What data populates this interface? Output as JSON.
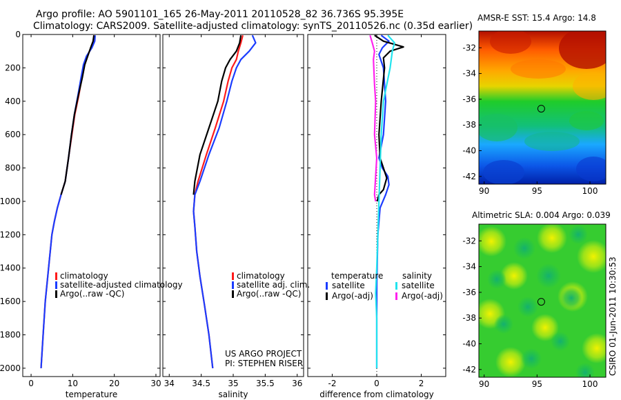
{
  "header": {
    "line1": "Argo profile: AO 5901101_165 26-May-2011 20110528_82 36.736S 95.395E",
    "line2": "Climatology: CARS2009. Satellite-adjusted climatology: synTS_20110526.nc (0.35d earlier)"
  },
  "colors": {
    "climatology": "#ff1a1a",
    "satellite": "#1a3cff",
    "argo": "#000000",
    "salinity_satellite": "#22e4ee",
    "salinity_argo": "#ff22ee"
  },
  "chart_data": [
    {
      "id": "temperature",
      "type": "line",
      "xlabel": "temperature",
      "ylabel": "",
      "xlim": [
        -2,
        31
      ],
      "ylim": [
        2050,
        0
      ],
      "xticks": [
        "0",
        "10",
        "20",
        "30"
      ],
      "xtick_values": [
        0,
        10,
        20,
        30
      ],
      "yticks": [
        "0",
        "200",
        "400",
        "600",
        "800",
        "1000",
        "1200",
        "1400",
        "1600",
        "1800",
        "2000"
      ],
      "ytick_values": [
        0,
        200,
        400,
        600,
        800,
        1000,
        1200,
        1400,
        1600,
        1800,
        2000
      ],
      "legend": [
        "climatology",
        "satellite-adjusted climatology",
        "Argo(..raw -QC)"
      ],
      "series": [
        {
          "name": "climatology",
          "color": "#ff1a1a",
          "x": [
            15.2,
            15.0,
            14.5,
            13.4,
            12.8,
            12.2,
            11.5,
            10.5,
            9.8,
            9.0,
            8.2,
            7.2,
            6.3,
            5.6,
            5.0,
            4.6,
            4.0,
            3.4,
            2.9,
            2.4
          ],
          "y": [
            5,
            40,
            80,
            130,
            180,
            260,
            360,
            480,
            600,
            740,
            880,
            960,
            1040,
            1120,
            1200,
            1300,
            1450,
            1600,
            1800,
            2000
          ]
        },
        {
          "name": "satellite-adjusted climatology",
          "color": "#1a3cff",
          "x": [
            15.4,
            15.3,
            14.6,
            13.3,
            12.6,
            12.0,
            11.3,
            10.4,
            9.7,
            9.0,
            8.2,
            7.2,
            6.3,
            5.6,
            5.0,
            4.6,
            4.0,
            3.4,
            2.9,
            2.4
          ],
          "y": [
            5,
            40,
            80,
            130,
            180,
            260,
            360,
            480,
            600,
            740,
            880,
            960,
            1040,
            1120,
            1200,
            1300,
            1450,
            1600,
            1800,
            2000
          ]
        },
        {
          "name": "Argo(..raw -QC)",
          "color": "#000000",
          "x": [
            15.1,
            14.9,
            14.3,
            13.6,
            12.9,
            12.3,
            11.4,
            10.4,
            9.7,
            9.0,
            8.2,
            7.2
          ],
          "y": [
            5,
            40,
            80,
            130,
            180,
            260,
            360,
            480,
            600,
            740,
            880,
            960
          ]
        }
      ]
    },
    {
      "id": "salinity",
      "type": "line",
      "xlabel": "salinity",
      "xlim": [
        33.9,
        36.1
      ],
      "ylim": [
        2050,
        0
      ],
      "xticks": [
        "34",
        "34.5",
        "35",
        "35.5",
        "36"
      ],
      "xtick_values": [
        34,
        34.5,
        35,
        35.5,
        36
      ],
      "legend": [
        "climatology",
        "satellite adj. clim.",
        "Argo(..raw -QC)"
      ],
      "annotations": [
        "US ARGO PROJECT",
        "PI: STEPHEN RISER"
      ],
      "series": [
        {
          "name": "climatology",
          "color": "#ff1a1a",
          "x": [
            35.15,
            35.12,
            35.08,
            35.05,
            34.98,
            34.92,
            34.85,
            34.72,
            34.58,
            34.45,
            34.4,
            34.38,
            34.4,
            34.43,
            34.48,
            34.55,
            34.62,
            34.68
          ],
          "y": [
            5,
            50,
            100,
            150,
            200,
            280,
            400,
            560,
            720,
            880,
            960,
            1060,
            1150,
            1300,
            1450,
            1620,
            1800,
            2000
          ]
        },
        {
          "name": "satellite adj. clim.",
          "color": "#1a3cff",
          "x": [
            35.3,
            35.35,
            35.25,
            35.12,
            35.05,
            34.98,
            34.9,
            34.78,
            34.62,
            34.48,
            34.4,
            34.38,
            34.4,
            34.43,
            34.48,
            34.55,
            34.62,
            34.68
          ],
          "y": [
            5,
            50,
            100,
            150,
            200,
            280,
            400,
            560,
            720,
            880,
            960,
            1060,
            1150,
            1300,
            1450,
            1620,
            1800,
            2000
          ]
        },
        {
          "name": "Argo(..raw -QC)",
          "color": "#000000",
          "x": [
            35.12,
            35.1,
            35.05,
            34.95,
            34.88,
            34.82,
            34.76,
            34.62,
            34.48,
            34.4,
            34.38
          ],
          "y": [
            5,
            50,
            100,
            150,
            200,
            280,
            400,
            560,
            720,
            880,
            960
          ]
        }
      ]
    },
    {
      "id": "difference",
      "type": "line",
      "xlabel": "difference from climatology",
      "xlim": [
        -3.1,
        3.1
      ],
      "ylim": [
        2050,
        0
      ],
      "xticks": [
        "-2",
        "0",
        "2"
      ],
      "xtick_values": [
        -2,
        0,
        2
      ],
      "legend_headers": [
        "temperature",
        "salinity"
      ],
      "legend": [
        "satellite",
        "Argo(-adj)",
        "satellite",
        "Argo(-adj)"
      ],
      "series": [
        {
          "name": "temperature satellite",
          "color": "#1a3cff",
          "x": [
            0.2,
            0.55,
            0.25,
            0.1,
            0.3,
            0.4,
            0.3,
            0.1,
            0.25,
            0.5,
            0.55,
            0.4,
            0.15,
            0.05,
            0.0,
            0.0
          ],
          "y": [
            5,
            40,
            80,
            120,
            200,
            400,
            600,
            740,
            800,
            850,
            900,
            960,
            1040,
            1200,
            1500,
            2000
          ]
        },
        {
          "name": "temperature Argo(-adj)",
          "color": "#000000",
          "x": [
            -0.1,
            0.3,
            1.2,
            0.6,
            0.3,
            0.35,
            0.2,
            0.1,
            0.15,
            0.3,
            0.45,
            0.3,
            0.1,
            0.02
          ],
          "y": [
            5,
            40,
            75,
            100,
            140,
            200,
            400,
            600,
            740,
            800,
            860,
            930,
            960,
            1000
          ]
        },
        {
          "name": "salinity satellite",
          "color": "#22e4ee",
          "x": [
            0.5,
            0.8,
            0.7,
            0.6,
            0.45,
            0.3,
            0.2,
            0.15,
            0.1,
            0.05,
            0.0,
            -0.05,
            0.0,
            0.0
          ],
          "y": [
            5,
            50,
            100,
            200,
            300,
            400,
            600,
            800,
            1000,
            1200,
            1400,
            1550,
            1700,
            2000
          ]
        },
        {
          "name": "salinity Argo(-adj)",
          "color": "#ff22ee",
          "x": [
            -0.3,
            -0.2,
            -0.1,
            -0.15,
            -0.1,
            -0.05,
            -0.1,
            0.0,
            -0.05,
            -0.1,
            -0.05
          ],
          "y": [
            5,
            50,
            100,
            150,
            300,
            400,
            600,
            740,
            850,
            960,
            1000
          ]
        }
      ]
    }
  ],
  "maps": [
    {
      "id": "sst",
      "title": "AMSR-E SST: 15.4 Argo: 14.8",
      "xticks": [
        "90",
        "95",
        "100"
      ],
      "xtick_values": [
        90,
        95,
        100
      ],
      "yticks": [
        "-32",
        "-34",
        "-36",
        "-38",
        "-40",
        "-42"
      ],
      "ytick_values": [
        -32,
        -34,
        -36,
        -38,
        -40,
        -42
      ],
      "xlim": [
        89.5,
        101.5
      ],
      "ylim": [
        -42.6,
        -30.7
      ],
      "marker": {
        "lon": 95.395,
        "lat": -36.736
      }
    },
    {
      "id": "sla",
      "title": "Altimetric SLA: 0.004 Argo: 0.039",
      "xticks": [
        "90",
        "95",
        "100"
      ],
      "xtick_values": [
        90,
        95,
        100
      ],
      "yticks": [
        "-32",
        "-34",
        "-36",
        "-38",
        "-40",
        "-42"
      ],
      "ytick_values": [
        -32,
        -34,
        -36,
        -38,
        -40,
        -42
      ],
      "xlim": [
        89.5,
        101.5
      ],
      "ylim": [
        -42.6,
        -30.7
      ],
      "marker": {
        "lon": 95.395,
        "lat": -36.736
      }
    }
  ],
  "footer": {
    "stamp": "CSIRO 01-Jun-2011 10:30:53"
  }
}
